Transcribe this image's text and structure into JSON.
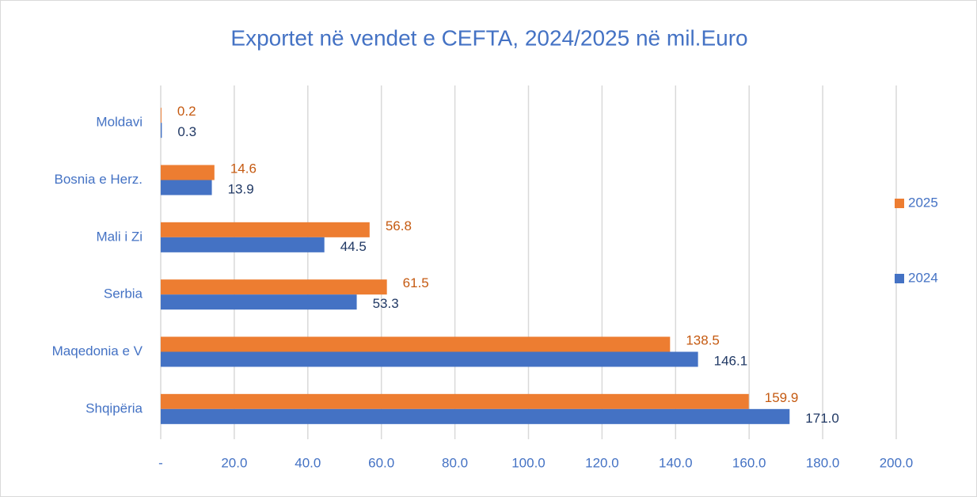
{
  "chart_data": {
    "type": "bar",
    "orientation": "horizontal",
    "title": "Exportet në vendet e CEFTA, 2024/2025 në mil.Euro",
    "categories": [
      "Moldavi",
      "Bosnia e Herz.",
      "Mali i Zi",
      "Serbia",
      "Maqedonia e V",
      "Shqipëria"
    ],
    "series": [
      {
        "name": "2025",
        "color": "#ed7d31",
        "label_color": "#c55a11",
        "values": [
          0.2,
          14.6,
          56.8,
          61.5,
          138.5,
          159.9
        ],
        "value_labels": [
          "0.2",
          "14.6",
          "56.8",
          "61.5",
          "138.5",
          "159.9"
        ]
      },
      {
        "name": "2024",
        "color": "#4472c4",
        "label_color": "#203864",
        "values": [
          0.3,
          13.9,
          44.5,
          53.3,
          146.1,
          171.0
        ],
        "value_labels": [
          "0.3",
          "13.9",
          "44.5",
          "53.3",
          "146.1",
          "171.0"
        ]
      }
    ],
    "xlim": [
      0,
      200
    ],
    "xticks": [
      {
        "value": 0,
        "label": "-"
      },
      {
        "value": 20,
        "label": "20.0"
      },
      {
        "value": 40,
        "label": "40.0"
      },
      {
        "value": 60,
        "label": "60.0"
      },
      {
        "value": 80,
        "label": "80.0"
      },
      {
        "value": 100,
        "label": "100.0"
      },
      {
        "value": 120,
        "label": "120.0"
      },
      {
        "value": 140,
        "label": "140.0"
      },
      {
        "value": 160,
        "label": "160.0"
      },
      {
        "value": 180,
        "label": "180.0"
      },
      {
        "value": 200,
        "label": "200.0"
      }
    ],
    "grid": true,
    "legend": "right"
  }
}
